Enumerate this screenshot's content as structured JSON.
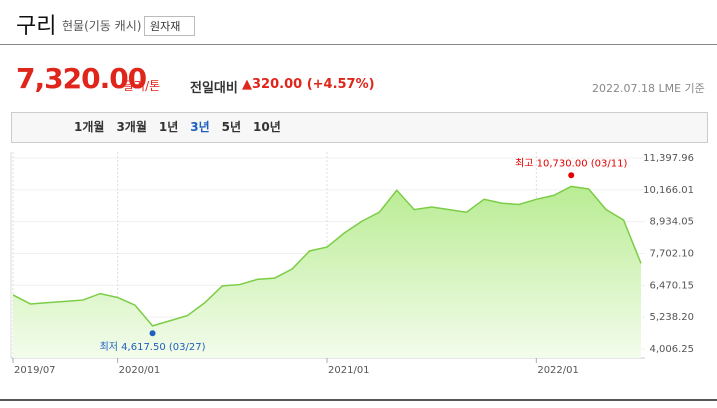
{
  "header": {
    "title": "구리",
    "subtitle": "현물(기동 캐시)",
    "button": "원자재",
    "price": "7,320.00",
    "unit": "달러/톤",
    "change_label": "전일대비",
    "change": "▲320.00 (+4.57%)",
    "date": "2022.07.18 LME 기준"
  },
  "tabs": [
    "1개월",
    "3개월",
    "1년",
    "3년",
    "5년",
    "10년"
  ],
  "active_tab": 3,
  "chart_data": {
    "type": "area",
    "x": [
      "2019/07",
      null,
      null,
      null,
      null,
      null,
      "2020/01",
      null,
      null,
      null,
      null,
      null,
      null,
      null,
      null,
      null,
      null,
      null,
      "2021/01",
      null,
      null,
      null,
      null,
      null,
      null,
      null,
      null,
      null,
      null,
      null,
      "2022/01",
      null,
      null,
      null,
      null,
      null,
      null
    ],
    "series": [
      {
        "name": "구리",
        "color": "#7ccd46",
        "values": [
          6100,
          5750,
          5800,
          5850,
          5900,
          6150,
          6000,
          5700,
          4900,
          5100,
          5300,
          5800,
          6450,
          6500,
          6700,
          6750,
          7100,
          7800,
          7950,
          8500,
          8950,
          9300,
          10150,
          9400,
          9500,
          9400,
          9300,
          9800,
          9650,
          9600,
          9800,
          9950,
          10300,
          10200,
          9400,
          9000,
          7320
        ]
      }
    ],
    "ylim": [
      4006.25,
      11397.96
    ],
    "yticks": [
      {
        "value": 4006.25,
        "label": "4,006.25"
      },
      {
        "value": 5238.2,
        "label": "5,238.20"
      },
      {
        "value": 6470.15,
        "label": "6,470.15"
      },
      {
        "value": 7702.1,
        "label": "7,702.10"
      },
      {
        "value": 8934.05,
        "label": "8,934.05"
      },
      {
        "value": 10166.01,
        "label": "10,166.01"
      },
      {
        "value": 11397.96,
        "label": "11,397.96"
      }
    ],
    "annotations": [
      {
        "label": "최저 4,617.50 (03/27)",
        "value": 4617.5,
        "color": "#1f5fbf"
      },
      {
        "label": "최고 10,730.00 (03/11)",
        "value": 10730,
        "color": "#e60000"
      }
    ]
  }
}
